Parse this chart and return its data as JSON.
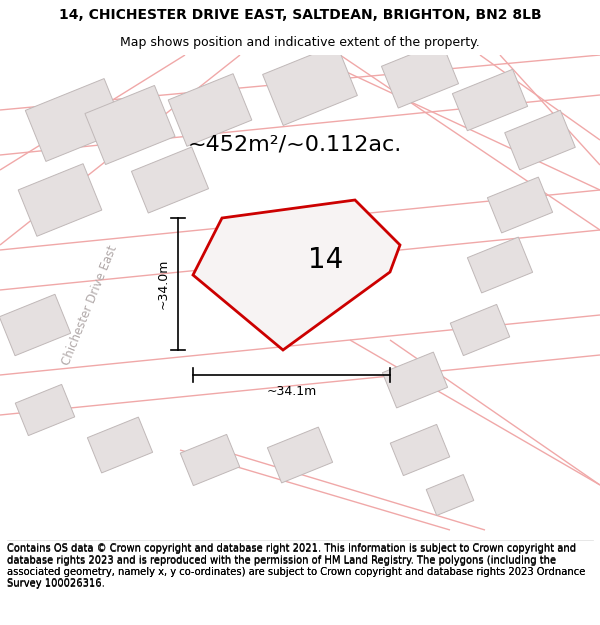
{
  "title_line1": "14, CHICHESTER DRIVE EAST, SALTDEAN, BRIGHTON, BN2 8LB",
  "title_line2": "Map shows position and indicative extent of the property.",
  "area_label": "~452m²/~0.112ac.",
  "label_number": "14",
  "dim_vertical": "~34.0m",
  "dim_horizontal": "~34.1m",
  "road_label": "Chichester Drive East",
  "footer_text": "Contains OS data © Crown copyright and database right 2021. This information is subject to Crown copyright and database rights 2023 and is reproduced with the permission of HM Land Registry. The polygons (including the associated geometry, namely x, y co-ordinates) are subject to Crown copyright and database rights 2023 Ordnance Survey 100026316.",
  "bg_color": "#ffffff",
  "map_bg": "#f7f3f3",
  "building_fill": "#e5e0e0",
  "building_edge": "#c0b8b8",
  "road_line_color": "#f0a8a8",
  "highlight_fill": "#f7f3f3",
  "highlight_edge": "#cc0000",
  "text_color": "#000000",
  "road_label_color": "#b0a8a8",
  "dim_line_color": "#000000",
  "title_fontsize": 10,
  "subtitle_fontsize": 9,
  "area_fontsize": 16,
  "number_fontsize": 20,
  "dim_fontsize": 9,
  "road_label_fontsize": 8.5,
  "footer_fontsize": 7.2
}
